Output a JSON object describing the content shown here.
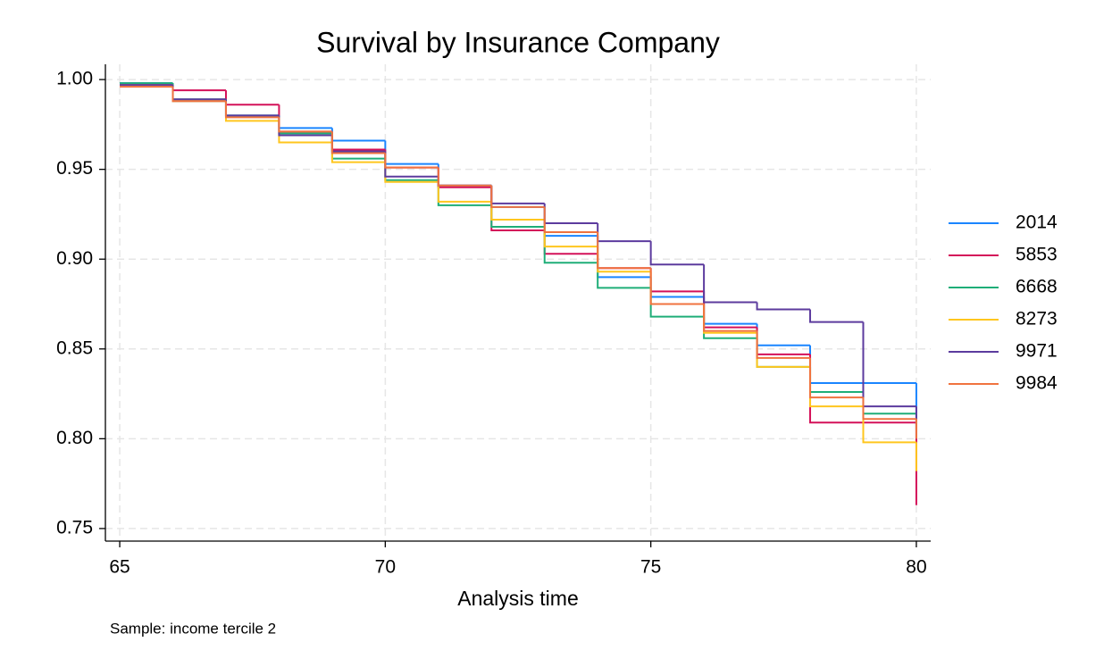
{
  "chart_data": {
    "type": "step",
    "title": "Survival by Insurance Company",
    "xlabel": "Analysis time",
    "note": "Sample: income tercile 2",
    "x": [
      65,
      66,
      67,
      68,
      69,
      70,
      71,
      72,
      73,
      74,
      75,
      76,
      77,
      78,
      79,
      80
    ],
    "xlim": [
      64.73,
      80.27
    ],
    "xticks": [
      65,
      70,
      75,
      80
    ],
    "ylim": [
      0.743,
      1.0085
    ],
    "yticks": [
      {
        "value": 0.75,
        "label": "0.75"
      },
      {
        "value": 0.8,
        "label": "0.80"
      },
      {
        "value": 0.85,
        "label": "0.85"
      },
      {
        "value": 0.9,
        "label": "0.90"
      },
      {
        "value": 0.95,
        "label": "0.95"
      },
      {
        "value": 1.0,
        "label": "1.00"
      }
    ],
    "grid": true,
    "legend": "right",
    "series": [
      {
        "name": "2014",
        "color": "#1a85ff",
        "values": [
          0.998,
          0.988,
          0.98,
          0.973,
          0.966,
          0.953,
          0.941,
          0.929,
          0.913,
          0.89,
          0.879,
          0.864,
          0.852,
          0.831,
          0.831,
          0.808
        ]
      },
      {
        "name": "5853",
        "color": "#d41159",
        "values": [
          0.997,
          0.994,
          0.986,
          0.971,
          0.961,
          0.951,
          0.94,
          0.916,
          0.903,
          0.895,
          0.882,
          0.862,
          0.847,
          0.809,
          0.809,
          0.763
        ]
      },
      {
        "name": "6668",
        "color": "#1fae78",
        "values": [
          0.998,
          0.989,
          0.98,
          0.97,
          0.956,
          0.944,
          0.93,
          0.918,
          0.898,
          0.884,
          0.868,
          0.856,
          0.84,
          0.826,
          0.814,
          0.805
        ]
      },
      {
        "name": "8273",
        "color": "#ffc61e",
        "values": [
          0.997,
          0.988,
          0.977,
          0.965,
          0.954,
          0.943,
          0.932,
          0.922,
          0.907,
          0.893,
          0.875,
          0.859,
          0.84,
          0.818,
          0.798,
          0.782
        ]
      },
      {
        "name": "9971",
        "color": "#5c3b9e",
        "values": [
          0.997,
          0.989,
          0.98,
          0.969,
          0.96,
          0.946,
          0.941,
          0.931,
          0.92,
          0.91,
          0.897,
          0.876,
          0.872,
          0.865,
          0.818,
          0.8
        ]
      },
      {
        "name": "9984",
        "color": "#f0733f",
        "values": [
          0.996,
          0.988,
          0.979,
          0.971,
          0.959,
          0.951,
          0.941,
          0.929,
          0.915,
          0.895,
          0.875,
          0.86,
          0.845,
          0.823,
          0.811,
          0.8
        ]
      }
    ]
  }
}
